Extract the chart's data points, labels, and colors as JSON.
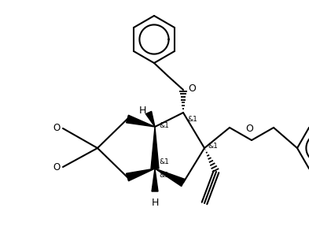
{
  "bg": "#ffffff",
  "lc": "#000000",
  "lw": 1.5,
  "figsize": [
    3.93,
    2.92
  ],
  "dpi": 100,
  "xlim": [
    0,
    393
  ],
  "ylim": [
    0,
    292
  ]
}
